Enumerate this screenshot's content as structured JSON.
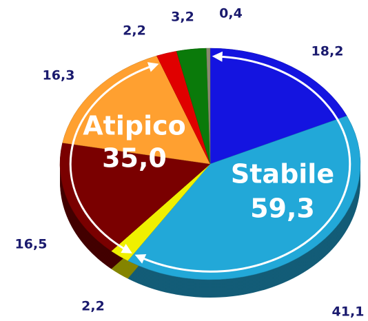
{
  "chart_data": {
    "type": "pie",
    "categories": [
      null,
      null,
      null,
      null,
      null,
      null,
      null,
      null
    ],
    "values": [
      18.2,
      41.1,
      2.2,
      16.5,
      16.3,
      2.2,
      3.2,
      0.4
    ],
    "value_labels": [
      "18,2",
      "41,1",
      "2,2",
      "16,5",
      "16,3",
      "2,2",
      "3,2",
      "0,4"
    ],
    "colors": [
      "#1414e0",
      "#22a8d8",
      "#f0f000",
      "#7a0000",
      "#ffa030",
      "#e00000",
      "#0a7a0a",
      "#8a8a70"
    ],
    "groups": [
      {
        "name": "Stabile",
        "value": 59.3,
        "value_label": "59,3"
      },
      {
        "name": "Atipico",
        "value": 35.0,
        "value_label": "35,0"
      }
    ]
  }
}
